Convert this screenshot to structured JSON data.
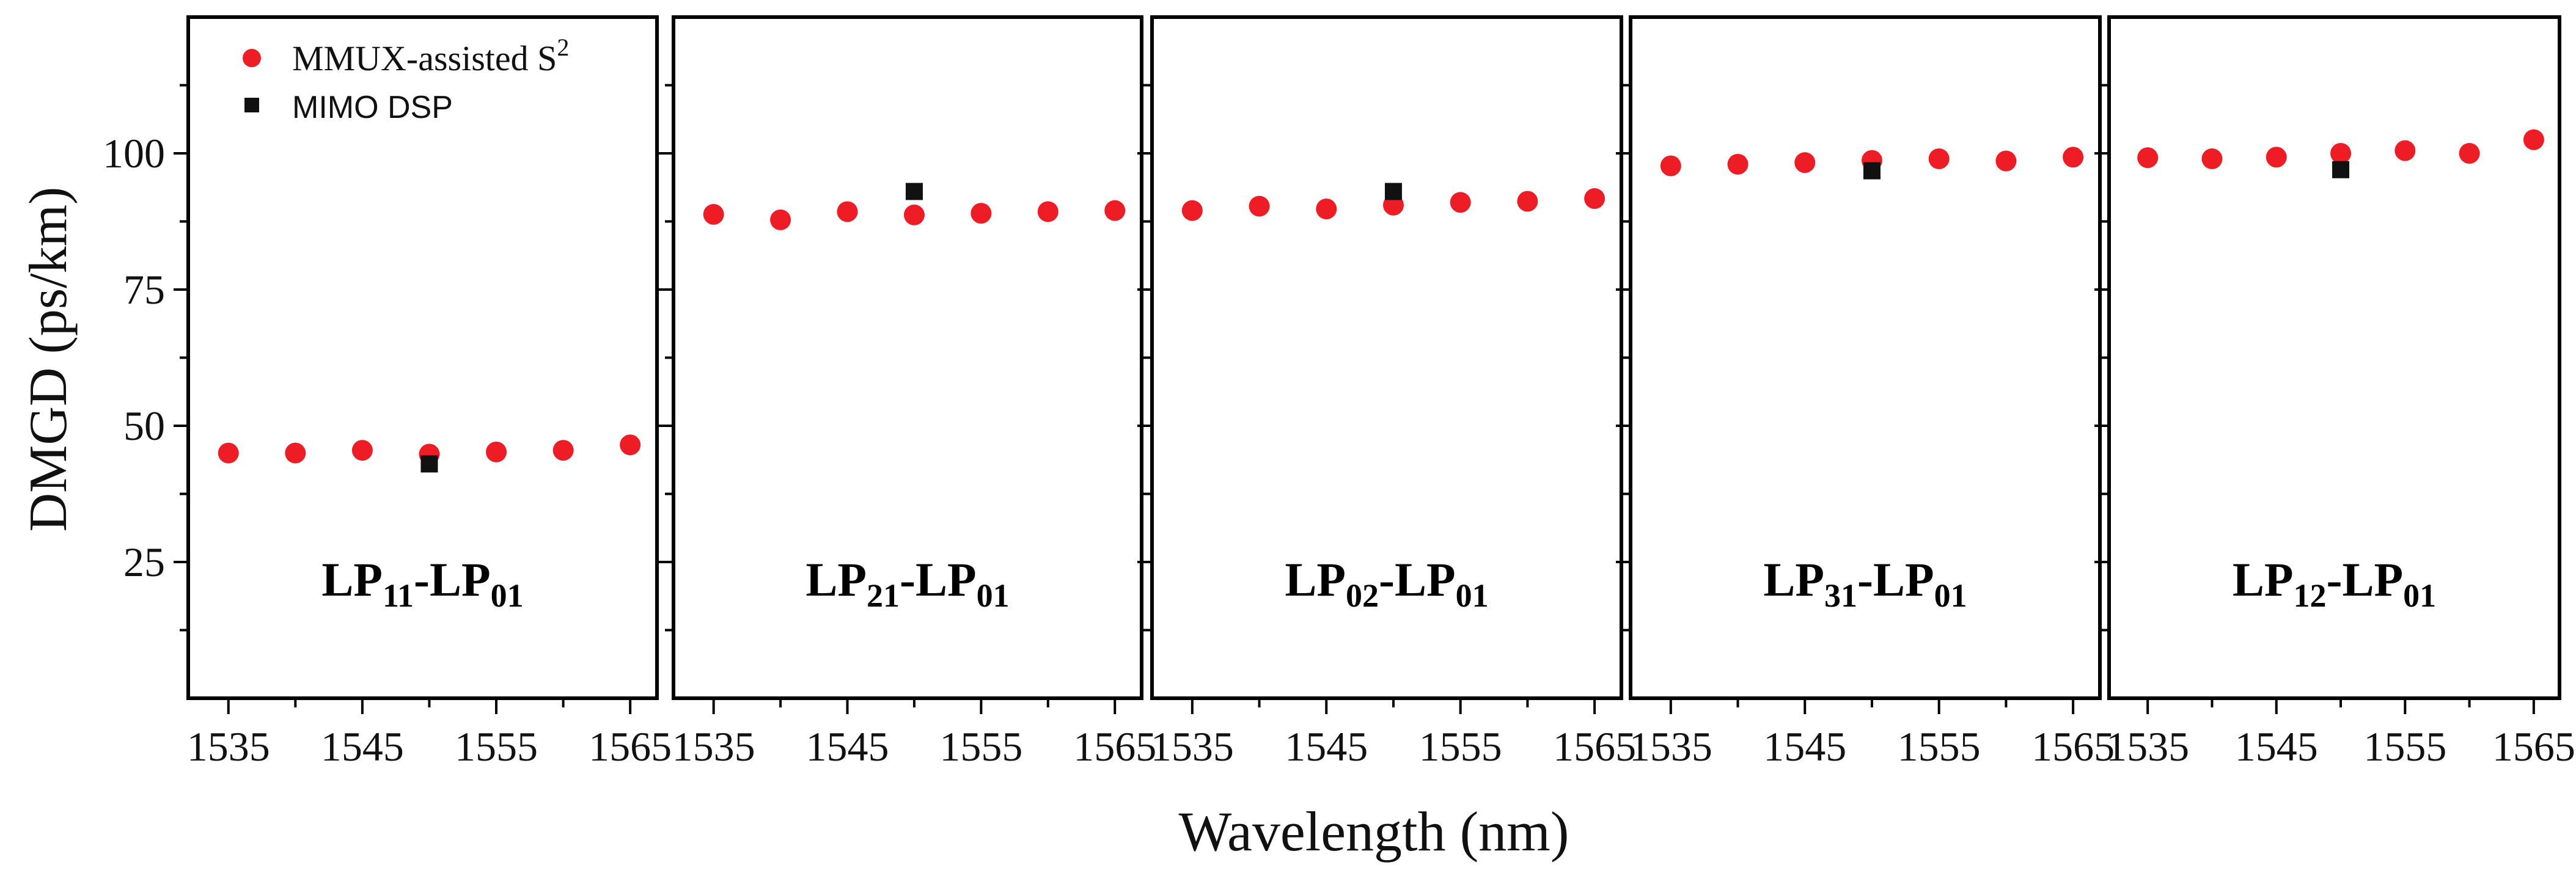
{
  "y_axis_label": "DMGD (ps/km)",
  "x_axis_label": "Wavelength (nm)",
  "legend": {
    "s2": {
      "text": "MMUX-assisted S",
      "sup": "2"
    },
    "mimo": {
      "text": "MIMO DSP"
    }
  },
  "colors": {
    "s2": "#ee1c24",
    "mimo": "#111111",
    "axes": "#000000"
  },
  "chart_data": [
    {
      "type": "scatter",
      "panel_label": {
        "main": "LP",
        "sub1": "11",
        "dash": "-LP",
        "sub2": "01"
      },
      "x": [
        1535,
        1540,
        1545,
        1550,
        1555,
        1560,
        1565
      ],
      "xticks": [
        "1535",
        "1545",
        "1555",
        "1565"
      ],
      "yticks": [
        "25",
        "50",
        "75",
        "100"
      ],
      "xlim": [
        1532,
        1567
      ],
      "ylim": [
        0,
        125
      ],
      "series": [
        {
          "name": "MMUX-assisted S2",
          "x": [
            1535,
            1540,
            1545,
            1550,
            1555,
            1560,
            1565
          ],
          "y": [
            45.0,
            45.0,
            45.5,
            44.8,
            45.2,
            45.5,
            46.5
          ]
        },
        {
          "name": "MIMO DSP",
          "x": [
            1550
          ],
          "y": [
            43.0
          ]
        }
      ]
    },
    {
      "type": "scatter",
      "panel_label": {
        "main": "LP",
        "sub1": "21",
        "dash": "-LP",
        "sub2": "01"
      },
      "x": [
        1535,
        1540,
        1545,
        1550,
        1555,
        1560,
        1565
      ],
      "xticks": [
        "1535",
        "1545",
        "1555",
        "1565"
      ],
      "yticks": [
        "25",
        "50",
        "75",
        "100"
      ],
      "xlim": [
        1532,
        1567
      ],
      "ylim": [
        0,
        125
      ],
      "series": [
        {
          "name": "MMUX-assisted S2",
          "x": [
            1535,
            1540,
            1545,
            1550,
            1555,
            1560,
            1565
          ],
          "y": [
            88.8,
            87.8,
            89.3,
            88.7,
            89.0,
            89.3,
            89.5
          ]
        },
        {
          "name": "MIMO DSP",
          "x": [
            1550
          ],
          "y": [
            93.0
          ]
        }
      ]
    },
    {
      "type": "scatter",
      "panel_label": {
        "main": "LP",
        "sub1": "02",
        "dash": "-LP",
        "sub2": "01"
      },
      "x": [
        1535,
        1540,
        1545,
        1550,
        1555,
        1560,
        1565
      ],
      "xticks": [
        "1535",
        "1545",
        "1555",
        "1565"
      ],
      "yticks": [
        "25",
        "50",
        "75",
        "100"
      ],
      "xlim": [
        1532,
        1567
      ],
      "ylim": [
        0,
        125
      ],
      "series": [
        {
          "name": "MMUX-assisted S2",
          "x": [
            1535,
            1540,
            1545,
            1550,
            1555,
            1560,
            1565
          ],
          "y": [
            89.5,
            90.3,
            89.8,
            90.5,
            91.0,
            91.2,
            91.7
          ]
        },
        {
          "name": "MIMO DSP",
          "x": [
            1550
          ],
          "y": [
            93.0
          ]
        }
      ]
    },
    {
      "type": "scatter",
      "panel_label": {
        "main": "LP",
        "sub1": "31",
        "dash": "-LP",
        "sub2": "01"
      },
      "x": [
        1535,
        1540,
        1545,
        1550,
        1555,
        1560,
        1565
      ],
      "xticks": [
        "1535",
        "1545",
        "1555",
        "1565"
      ],
      "yticks": [
        "25",
        "50",
        "75",
        "100"
      ],
      "xlim": [
        1532,
        1567
      ],
      "ylim": [
        0,
        125
      ],
      "series": [
        {
          "name": "MMUX-assisted S2",
          "x": [
            1535,
            1540,
            1545,
            1550,
            1555,
            1560,
            1565
          ],
          "y": [
            97.7,
            98.0,
            98.3,
            98.7,
            99.0,
            98.6,
            99.3
          ]
        },
        {
          "name": "MIMO DSP",
          "x": [
            1550
          ],
          "y": [
            96.8
          ]
        }
      ]
    },
    {
      "type": "scatter",
      "panel_label": {
        "main": "LP",
        "sub1": "12",
        "dash": "-LP",
        "sub2": "01"
      },
      "x": [
        1535,
        1540,
        1545,
        1550,
        1555,
        1560,
        1565
      ],
      "xticks": [
        "1535",
        "1545",
        "1555",
        "1565"
      ],
      "yticks": [
        "25",
        "50",
        "75",
        "100"
      ],
      "xlim": [
        1532,
        1567
      ],
      "ylim": [
        0,
        125
      ],
      "series": [
        {
          "name": "MMUX-assisted S2",
          "x": [
            1535,
            1540,
            1545,
            1550,
            1555,
            1560,
            1565
          ],
          "y": [
            99.2,
            99.0,
            99.3,
            100.0,
            100.5,
            100.0,
            102.5
          ]
        },
        {
          "name": "MIMO DSP",
          "x": [
            1550
          ],
          "y": [
            97.0
          ]
        }
      ]
    }
  ]
}
